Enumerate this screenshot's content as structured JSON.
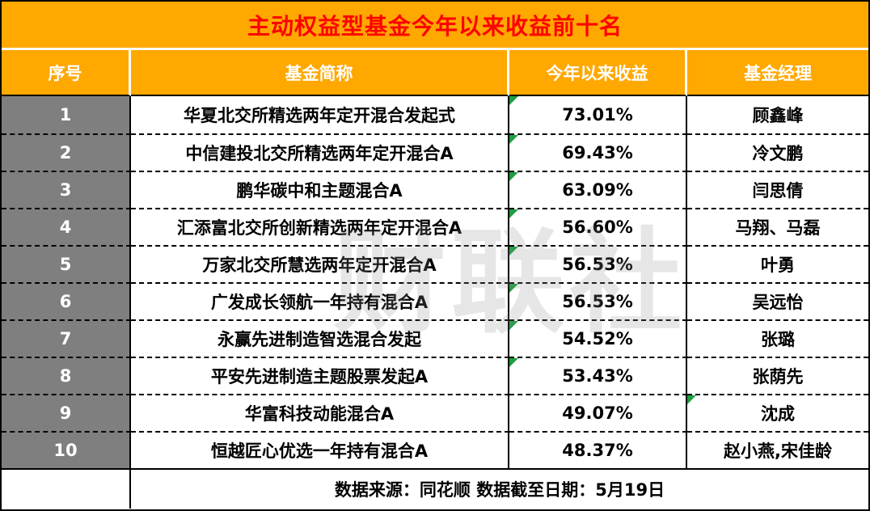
{
  "title": "主动权益型基金今年以来收益前十名",
  "watermark": "财联社",
  "chart_data": {
    "type": "table",
    "title": "主动权益型基金今年以来收益前十名",
    "columns": [
      "序号",
      "基金简称",
      "今年以来收益",
      "基金经理"
    ],
    "rows": [
      {
        "no": "1",
        "name": "华夏北交所精选两年定开混合发起式",
        "ytd_return": "73.01%",
        "manager": "顾鑫峰"
      },
      {
        "no": "2",
        "name": "中信建投北交所精选两年定开混合A",
        "ytd_return": "69.43%",
        "manager": "冷文鹏"
      },
      {
        "no": "3",
        "name": "鹏华碳中和主题混合A",
        "ytd_return": "63.09%",
        "manager": "闫思倩"
      },
      {
        "no": "4",
        "name": "汇添富北交所创新精选两年定开混合A",
        "ytd_return": "56.60%",
        "manager": "马翔、马磊"
      },
      {
        "no": "5",
        "name": "万家北交所慧选两年定开混合A",
        "ytd_return": "56.53%",
        "manager": "叶勇"
      },
      {
        "no": "6",
        "name": "广发成长领航一年持有混合A",
        "ytd_return": "56.53%",
        "manager": "吴远怡"
      },
      {
        "no": "7",
        "name": "永赢先进制造智选混合发起",
        "ytd_return": "54.52%",
        "manager": "张璐"
      },
      {
        "no": "8",
        "name": "平安先进制造主题股票发起A",
        "ytd_return": "53.43%",
        "manager": "张荫先"
      },
      {
        "no": "9",
        "name": "华富科技动能混合A",
        "ytd_return": "49.07%",
        "manager": "沈成"
      },
      {
        "no": "10",
        "name": "恒越匠心优选一年持有混合A",
        "ytd_return": "48.37%",
        "manager": "赵小燕,宋佳龄"
      }
    ],
    "footnote": "数据来源：同花顺  数据截至日期：5月19日"
  },
  "colors": {
    "header_bg": "#FFA800",
    "title_text": "#FF0000",
    "header_text": "#FFFFFF",
    "index_bg": "#7F7F7F",
    "body_text": "#000000",
    "flag_green": "#1E9E40"
  }
}
